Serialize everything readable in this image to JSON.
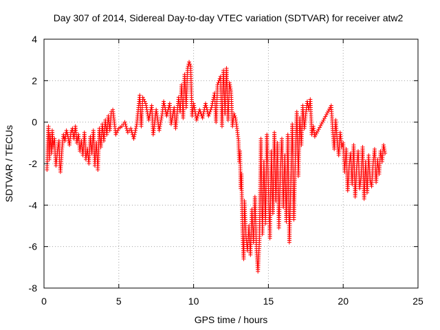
{
  "chart_data": {
    "type": "scatter",
    "title": "Day 307 of 2014, Sidereal Day-to-day VTEC variation (SDTVAR) for receiver atw2",
    "xlabel": "GPS time / hours",
    "ylabel": "SDTVAR / TECUs",
    "xlim": [
      0,
      25
    ],
    "ylim": [
      -8,
      4
    ],
    "xticks": [
      0,
      5,
      10,
      15,
      20,
      25
    ],
    "yticks": [
      -8,
      -6,
      -4,
      -2,
      0,
      2,
      4
    ],
    "grid": true,
    "legend": "none",
    "marker": "plus",
    "color": "#ff0000",
    "series": [
      {
        "points": [
          [
            0.2,
            -2.3
          ],
          [
            0.25,
            -1.0
          ],
          [
            0.3,
            -0.2
          ],
          [
            0.35,
            -1.8
          ],
          [
            0.4,
            -0.6
          ],
          [
            0.5,
            -1.5
          ],
          [
            0.55,
            -0.4
          ],
          [
            0.6,
            -1.2
          ],
          [
            0.7,
            -0.8
          ],
          [
            0.75,
            -1.6
          ],
          [
            0.8,
            -2.1
          ],
          [
            0.9,
            -1.4
          ],
          [
            1.0,
            -0.9
          ],
          [
            1.05,
            -2.0
          ],
          [
            1.1,
            -2.4
          ],
          [
            1.2,
            -1.3
          ],
          [
            1.3,
            -0.6
          ],
          [
            1.4,
            -0.9
          ],
          [
            1.5,
            -0.4
          ],
          [
            1.6,
            -0.7
          ],
          [
            1.7,
            -1.1
          ],
          [
            1.8,
            -0.5
          ],
          [
            1.9,
            -0.3
          ],
          [
            2.0,
            -0.8
          ],
          [
            2.1,
            -0.2
          ],
          [
            2.2,
            -1.0
          ],
          [
            2.3,
            -0.6
          ],
          [
            2.4,
            -1.4
          ],
          [
            2.5,
            -0.9
          ],
          [
            2.6,
            -1.6
          ],
          [
            2.7,
            -0.5
          ],
          [
            2.8,
            -1.8
          ],
          [
            2.9,
            -1.3
          ],
          [
            3.0,
            -2.0
          ],
          [
            3.1,
            -0.7
          ],
          [
            3.2,
            -1.5
          ],
          [
            3.3,
            -0.4
          ],
          [
            3.4,
            -2.1
          ],
          [
            3.5,
            -1.0
          ],
          [
            3.6,
            -2.3
          ],
          [
            3.7,
            -0.3
          ],
          [
            3.8,
            -1.2
          ],
          [
            3.9,
            -0.1
          ],
          [
            4.0,
            -0.9
          ],
          [
            4.1,
            0.1
          ],
          [
            4.2,
            -0.6
          ],
          [
            4.3,
            0.3
          ],
          [
            4.4,
            -0.4
          ],
          [
            4.5,
            0.5
          ],
          [
            4.6,
            0.6
          ],
          [
            4.8,
            -0.6
          ],
          [
            5.0,
            -0.3
          ],
          [
            5.2,
            -0.2
          ],
          [
            5.4,
            0.0
          ],
          [
            5.6,
            -0.5
          ],
          [
            5.8,
            -0.3
          ],
          [
            6.0,
            -0.8
          ],
          [
            6.2,
            -0.1
          ],
          [
            6.4,
            1.3
          ],
          [
            6.5,
            -0.2
          ],
          [
            6.6,
            1.2
          ],
          [
            6.8,
            0.9
          ],
          [
            7.0,
            0.1
          ],
          [
            7.2,
            0.8
          ],
          [
            7.3,
            -0.6
          ],
          [
            7.5,
            0.6
          ],
          [
            7.7,
            -0.4
          ],
          [
            7.9,
            0.4
          ],
          [
            8.0,
            1.0
          ],
          [
            8.2,
            0.3
          ],
          [
            8.4,
            0.9
          ],
          [
            8.5,
            -0.1
          ],
          [
            8.7,
            0.7
          ],
          [
            8.8,
            -0.3
          ],
          [
            9.0,
            1.2
          ],
          [
            9.1,
            0.5
          ],
          [
            9.2,
            1.8
          ],
          [
            9.3,
            0.2
          ],
          [
            9.4,
            2.3
          ],
          [
            9.5,
            0.7
          ],
          [
            9.6,
            2.6
          ],
          [
            9.7,
            2.9
          ],
          [
            9.8,
            2.7
          ],
          [
            9.9,
            0.3
          ],
          [
            10.0,
            0.9
          ],
          [
            10.2,
            0.1
          ],
          [
            10.4,
            0.6
          ],
          [
            10.6,
            0.2
          ],
          [
            10.8,
            0.9
          ],
          [
            11.0,
            0.3
          ],
          [
            11.2,
            0.7
          ],
          [
            11.4,
            1.4
          ],
          [
            11.5,
            0.0
          ],
          [
            11.6,
            1.8
          ],
          [
            11.8,
            2.2
          ],
          [
            11.9,
            -0.2
          ],
          [
            12.0,
            2.5
          ],
          [
            12.1,
            0.4
          ],
          [
            12.2,
            2.6
          ],
          [
            12.3,
            0.1
          ],
          [
            12.4,
            1.9
          ],
          [
            12.5,
            1.5
          ],
          [
            12.6,
            -0.2
          ],
          [
            12.7,
            0.4
          ],
          [
            12.8,
            0.2
          ],
          [
            12.9,
            -0.3
          ],
          [
            13.0,
            -0.9
          ],
          [
            13.05,
            -1.9
          ],
          [
            13.1,
            -1.4
          ],
          [
            13.15,
            -3.2
          ],
          [
            13.2,
            -2.5
          ],
          [
            13.25,
            -4.6
          ],
          [
            13.3,
            -5.9
          ],
          [
            13.35,
            -6.6
          ],
          [
            13.4,
            -3.8
          ],
          [
            13.5,
            -5.5
          ],
          [
            13.6,
            -6.2
          ],
          [
            13.7,
            -5.0
          ],
          [
            13.8,
            -6.4
          ],
          [
            13.9,
            -4.2
          ],
          [
            14.0,
            -5.8
          ],
          [
            14.1,
            -3.6
          ],
          [
            14.2,
            -6.1
          ],
          [
            14.3,
            -7.2
          ],
          [
            14.4,
            -5.7
          ],
          [
            14.5,
            -0.8
          ],
          [
            14.6,
            -5.4
          ],
          [
            14.7,
            -1.9
          ],
          [
            14.8,
            -4.9
          ],
          [
            14.9,
            -0.6
          ],
          [
            15.0,
            -3.1
          ],
          [
            15.1,
            -5.6
          ],
          [
            15.2,
            -1.4
          ],
          [
            15.3,
            -4.4
          ],
          [
            15.4,
            -0.5
          ],
          [
            15.5,
            -3.8
          ],
          [
            15.6,
            -1.0
          ],
          [
            15.7,
            -5.1
          ],
          [
            15.8,
            -2.4
          ],
          [
            15.9,
            -0.8
          ],
          [
            16.0,
            -4.1
          ],
          [
            16.1,
            -1.6
          ],
          [
            16.2,
            -4.8
          ],
          [
            16.3,
            -0.6
          ],
          [
            16.4,
            -5.8
          ],
          [
            16.5,
            -3.0
          ],
          [
            16.6,
            -0.1
          ],
          [
            16.7,
            -4.7
          ],
          [
            16.8,
            -1.8
          ],
          [
            16.9,
            0.5
          ],
          [
            17.0,
            -2.6
          ],
          [
            17.1,
            0.2
          ],
          [
            17.2,
            -1.1
          ],
          [
            17.3,
            0.8
          ],
          [
            17.4,
            -0.3
          ],
          [
            17.5,
            0.4
          ],
          [
            17.6,
            1.0
          ],
          [
            17.7,
            0.6
          ],
          [
            17.8,
            1.1
          ],
          [
            17.9,
            -0.6
          ],
          [
            18.0,
            -0.2
          ],
          [
            18.1,
            -0.7
          ],
          [
            19.2,
            0.8
          ],
          [
            19.3,
            -0.4
          ],
          [
            19.4,
            -1.3
          ],
          [
            19.5,
            0.1
          ],
          [
            19.6,
            -0.9
          ],
          [
            19.7,
            -1.6
          ],
          [
            19.8,
            -0.5
          ],
          [
            19.9,
            -1.2
          ],
          [
            20.0,
            -1.0
          ],
          [
            20.1,
            -2.4
          ],
          [
            20.2,
            -1.3
          ],
          [
            20.3,
            -3.3
          ],
          [
            20.4,
            -2.1
          ],
          [
            20.5,
            -1.5
          ],
          [
            20.6,
            -3.0
          ],
          [
            20.7,
            -1.1
          ],
          [
            20.8,
            -3.6
          ],
          [
            20.9,
            -2.2
          ],
          [
            21.0,
            -1.4
          ],
          [
            21.1,
            -3.2
          ],
          [
            21.2,
            -2.6
          ],
          [
            21.3,
            -1.2
          ],
          [
            21.4,
            -3.7
          ],
          [
            21.5,
            -1.9
          ],
          [
            21.6,
            -3.4
          ],
          [
            21.7,
            -1.6
          ],
          [
            21.8,
            -2.8
          ],
          [
            21.9,
            -3.1
          ],
          [
            22.0,
            -2.0
          ],
          [
            22.1,
            -1.3
          ],
          [
            22.2,
            -2.9
          ],
          [
            22.3,
            -1.8
          ],
          [
            22.4,
            -2.5
          ],
          [
            22.5,
            -1.4
          ],
          [
            22.6,
            -1.9
          ],
          [
            22.7,
            -1.1
          ],
          [
            22.8,
            -1.5
          ]
        ]
      }
    ]
  }
}
